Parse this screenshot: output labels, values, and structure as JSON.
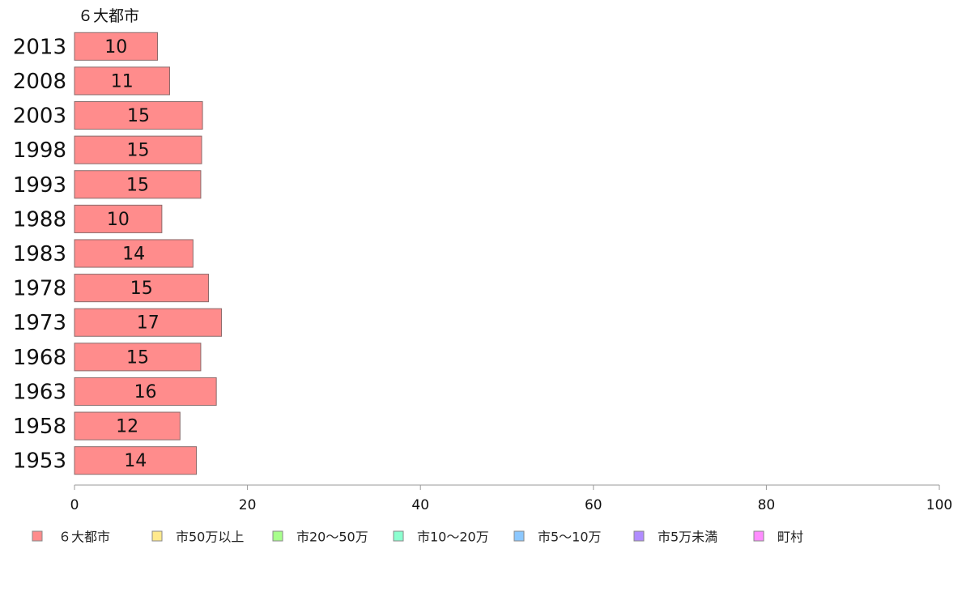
{
  "chart_data": {
    "type": "bar",
    "orientation": "horizontal",
    "title": "６大都市",
    "categories": [
      "2013",
      "2008",
      "2003",
      "1998",
      "1993",
      "1988",
      "1983",
      "1978",
      "1973",
      "1968",
      "1963",
      "1958",
      "1953"
    ],
    "series": [
      {
        "name": "６大都市",
        "color": "#ff8c8c",
        "values": [
          9.6,
          11.0,
          14.8,
          14.7,
          14.6,
          10.1,
          13.7,
          15.5,
          17.0,
          14.6,
          16.4,
          12.2,
          14.1
        ],
        "labels": [
          "10",
          "11",
          "15",
          "15",
          "15",
          "10",
          "14",
          "15",
          "17",
          "15",
          "16",
          "12",
          "14"
        ]
      }
    ],
    "xlim": [
      0,
      100
    ],
    "xticks": [
      0,
      20,
      40,
      60,
      80,
      100
    ],
    "grid": false,
    "legend": {
      "placement": "bottom-left",
      "items": [
        {
          "name": "６大都市",
          "color": "#ff8c8c"
        },
        {
          "name": "市50万以上",
          "color": "#ffe98c"
        },
        {
          "name": "市20～50万",
          "color": "#a8ff8c"
        },
        {
          "name": "市10～20万",
          "color": "#8cffd0"
        },
        {
          "name": "市5～10万",
          "color": "#8cc8ff"
        },
        {
          "name": "市5万未満",
          "color": "#b08cff"
        },
        {
          "name": "町村",
          "color": "#ff8cff"
        }
      ]
    }
  }
}
